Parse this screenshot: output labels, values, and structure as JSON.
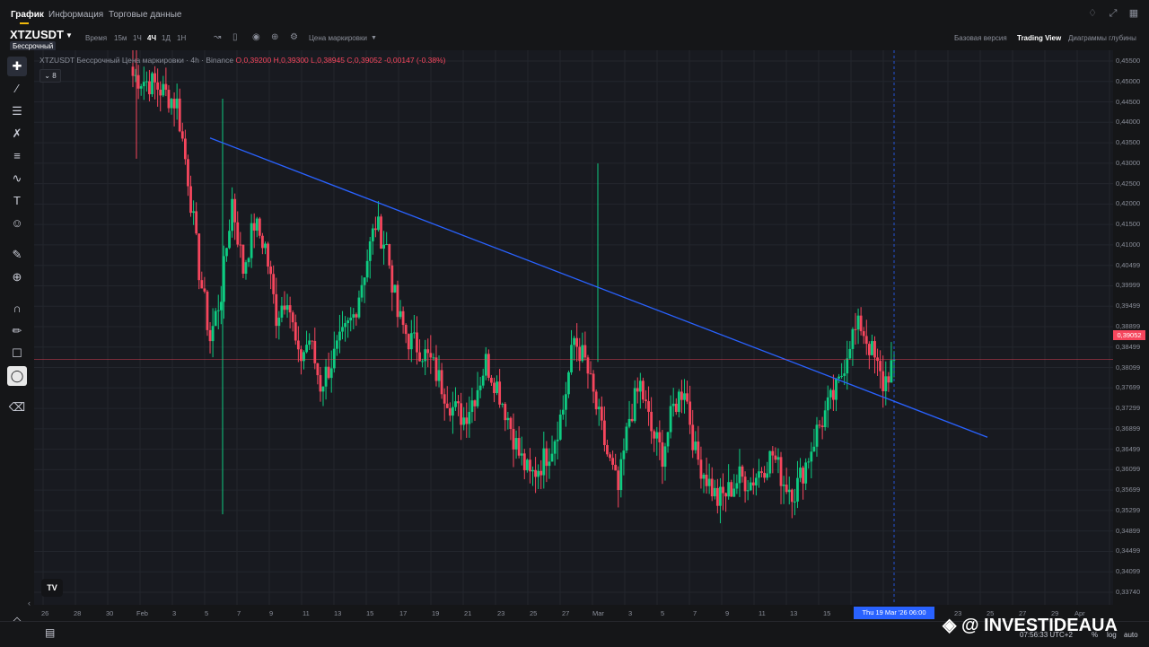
{
  "topbar": {
    "tabs": [
      "График",
      "Информация",
      "Торговые данные"
    ],
    "active_tab": 0
  },
  "header": {
    "symbol": "XTZUSDT",
    "badge": "Бессрочный",
    "timeframes": [
      "Время",
      "15м",
      "1Ч",
      "4Ч",
      "1Д",
      "1Н"
    ],
    "active_timeframe": 3,
    "price_source": "Цена маркировки",
    "view_tabs": [
      "Базовая версия",
      "Trading View",
      "Диаграммы глубины"
    ],
    "active_view": 1
  },
  "legend": {
    "prefix": "XTZUSDT Бессрочный Цена маркировки · 4h · Binance",
    "open": "O,0,39200",
    "high": "H,0,39300",
    "low": "L,0,38945",
    "close": "C,0,39052",
    "change": "-0,00147 (-0.38%)",
    "indicators_count": "8"
  },
  "price_axis": {
    "labels": [
      "0,45500",
      "0,45000",
      "0,44500",
      "0,44000",
      "0,43500",
      "0,43000",
      "0,42500",
      "0,42000",
      "0,41500",
      "0,41000",
      "0,40499",
      "0,39999",
      "0,39499",
      "0,38899",
      "0,38499",
      "0,38099",
      "0,37699",
      "0,37299",
      "0,36899",
      "0,36499",
      "0,36099",
      "0,35699",
      "0,35299",
      "0,34899",
      "0,34499",
      "0,34099",
      "0,33740"
    ],
    "current_price": "0,39052"
  },
  "time_axis": {
    "labels": [
      "26",
      "28",
      "30",
      "Feb",
      "3",
      "5",
      "7",
      "9",
      "11",
      "13",
      "15",
      "17",
      "19",
      "21",
      "23",
      "25",
      "27",
      "Mar",
      "3",
      "5",
      "7",
      "9",
      "11",
      "13",
      "15",
      "21",
      "23",
      "25",
      "27",
      "29",
      "Apr"
    ],
    "crosshair_date": "Thu 19 Mar '26   06:00"
  },
  "bottom": {
    "clock": "07:56:33 UTC+2",
    "scale_options": [
      "%",
      "log",
      "auto"
    ]
  },
  "watermark": "@ INVESTIDEAUA",
  "colors": {
    "up": "#0ecb81",
    "down": "#f6465d",
    "trendline": "#2962ff",
    "accent": "#f0b90b"
  },
  "chart_data": {
    "type": "candlestick",
    "symbol": "XTZUSDT",
    "interval": "4h",
    "ylim": [
      0.3374,
      0.4575
    ],
    "x_range": [
      "Jan 26",
      "Apr 1"
    ],
    "trendline": {
      "from": {
        "date": "Feb 5",
        "price": 0.4385
      },
      "to": {
        "date": "Mar 25",
        "price": 0.3737
      }
    },
    "last_close": 0.39052,
    "closes": [
      0.452,
      0.451,
      0.45,
      0.448,
      0.446,
      0.43,
      0.41,
      0.395,
      0.405,
      0.425,
      0.41,
      0.42,
      0.415,
      0.4,
      0.405,
      0.39,
      0.395,
      0.385,
      0.39,
      0.395,
      0.4,
      0.41,
      0.42,
      0.415,
      0.4,
      0.395,
      0.393,
      0.39,
      0.385,
      0.38,
      0.378,
      0.383,
      0.39,
      0.385,
      0.378,
      0.37,
      0.365,
      0.368,
      0.372,
      0.38,
      0.395,
      0.39,
      0.38,
      0.37,
      0.362,
      0.378,
      0.385,
      0.375,
      0.37,
      0.38,
      0.385,
      0.37,
      0.365,
      0.36,
      0.362,
      0.365,
      0.364,
      0.367,
      0.37,
      0.364,
      0.362,
      0.368,
      0.375,
      0.38,
      0.385,
      0.395,
      0.398,
      0.392,
      0.385,
      0.3905
    ]
  },
  "left_toolbar": [
    "crosshair-tool",
    "trend-tool",
    "horizontal-lines-tool",
    "pattern-tool",
    "fib-tool",
    "polyline-tool",
    "text-tool",
    "emoji-tool",
    "ruler-tool",
    "zoom-tool",
    "magnet-tool",
    "brush-lock-tool",
    "lock-tool",
    "hide-drawings-tool",
    "delete-tool"
  ]
}
